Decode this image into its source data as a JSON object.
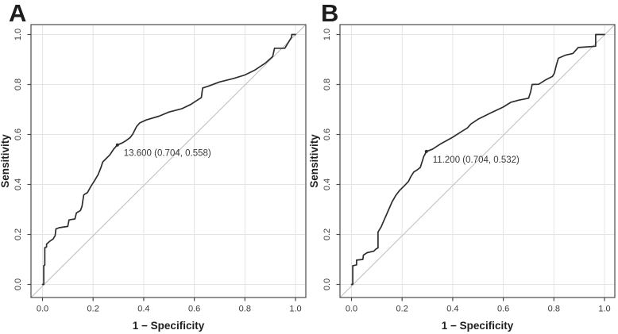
{
  "page": {
    "background": "#ffffff"
  },
  "colors": {
    "curve": "#2e2e2e",
    "grid": "#e4e4e4",
    "diagonal": "#bdbdbd",
    "frame": "#4a4a4a",
    "tick_text": "#3a3a3a",
    "annotation_text": "#3a3a3a",
    "panel_letter": "#1d1d1d"
  },
  "chart_data": [
    {
      "type": "line",
      "panel_label": "A",
      "xlabel": "1 − Specificity",
      "ylabel": "Sensitivity",
      "xlim": [
        0,
        1
      ],
      "ylim": [
        0,
        1
      ],
      "grid": true,
      "legend": false,
      "reference_line": "diagonal y=x",
      "xticks": [
        "0.0",
        "0.2",
        "0.4",
        "0.6",
        "0.8",
        "1.0"
      ],
      "yticks": [
        "0.0",
        "0.2",
        "0.4",
        "0.6",
        "0.8",
        "1.0"
      ],
      "cutoff_annotation": {
        "label": "13.600 (0.704, 0.558)",
        "cutoff": "13.600",
        "specificity": 0.704,
        "sensitivity": 0.558,
        "x": 0.296,
        "y": 0.558
      },
      "roc_points": [
        [
          0,
          0
        ],
        [
          0.005,
          0
        ],
        [
          0.005,
          0.075
        ],
        [
          0.009,
          0.078
        ],
        [
          0.009,
          0.147
        ],
        [
          0.016,
          0.15
        ],
        [
          0.016,
          0.161
        ],
        [
          0.028,
          0.172
        ],
        [
          0.042,
          0.182
        ],
        [
          0.05,
          0.195
        ],
        [
          0.053,
          0.222
        ],
        [
          0.066,
          0.227
        ],
        [
          0.1,
          0.232
        ],
        [
          0.105,
          0.258
        ],
        [
          0.128,
          0.262
        ],
        [
          0.134,
          0.286
        ],
        [
          0.15,
          0.296
        ],
        [
          0.156,
          0.312
        ],
        [
          0.163,
          0.358
        ],
        [
          0.178,
          0.368
        ],
        [
          0.19,
          0.39
        ],
        [
          0.205,
          0.414
        ],
        [
          0.22,
          0.44
        ],
        [
          0.231,
          0.468
        ],
        [
          0.238,
          0.49
        ],
        [
          0.25,
          0.502
        ],
        [
          0.266,
          0.518
        ],
        [
          0.281,
          0.541
        ],
        [
          0.296,
          0.558
        ],
        [
          0.315,
          0.566
        ],
        [
          0.331,
          0.576
        ],
        [
          0.347,
          0.588
        ],
        [
          0.357,
          0.602
        ],
        [
          0.372,
          0.632
        ],
        [
          0.384,
          0.646
        ],
        [
          0.41,
          0.658
        ],
        [
          0.46,
          0.673
        ],
        [
          0.5,
          0.69
        ],
        [
          0.55,
          0.703
        ],
        [
          0.586,
          0.72
        ],
        [
          0.616,
          0.74
        ],
        [
          0.628,
          0.748
        ],
        [
          0.633,
          0.786
        ],
        [
          0.655,
          0.793
        ],
        [
          0.7,
          0.81
        ],
        [
          0.755,
          0.824
        ],
        [
          0.8,
          0.838
        ],
        [
          0.84,
          0.858
        ],
        [
          0.88,
          0.885
        ],
        [
          0.91,
          0.912
        ],
        [
          0.917,
          0.945
        ],
        [
          0.958,
          0.945
        ],
        [
          0.985,
          0.99
        ],
        [
          0.985,
          1
        ],
        [
          1,
          1
        ]
      ]
    },
    {
      "type": "line",
      "panel_label": "B",
      "xlabel": "1 − Specificity",
      "ylabel": "Sensitivity",
      "xlim": [
        0,
        1
      ],
      "ylim": [
        0,
        1
      ],
      "grid": true,
      "legend": false,
      "reference_line": "diagonal y=x",
      "xticks": [
        "0.0",
        "0.2",
        "0.4",
        "0.6",
        "0.8",
        "1.0"
      ],
      "yticks": [
        "0.0",
        "0.2",
        "0.4",
        "0.6",
        "0.8",
        "1.0"
      ],
      "cutoff_annotation": {
        "label": "11.200 (0.704, 0.532)",
        "cutoff": "11.200",
        "specificity": 0.704,
        "sensitivity": 0.532,
        "x": 0.296,
        "y": 0.532
      },
      "roc_points": [
        [
          0,
          0
        ],
        [
          0.005,
          0
        ],
        [
          0.005,
          0.075
        ],
        [
          0.02,
          0.078
        ],
        [
          0.02,
          0.097
        ],
        [
          0.045,
          0.1
        ],
        [
          0.047,
          0.117
        ],
        [
          0.062,
          0.127
        ],
        [
          0.088,
          0.133
        ],
        [
          0.097,
          0.142
        ],
        [
          0.105,
          0.146
        ],
        [
          0.105,
          0.21
        ],
        [
          0.117,
          0.23
        ],
        [
          0.13,
          0.26
        ],
        [
          0.145,
          0.295
        ],
        [
          0.16,
          0.33
        ],
        [
          0.175,
          0.356
        ],
        [
          0.19,
          0.376
        ],
        [
          0.21,
          0.396
        ],
        [
          0.225,
          0.412
        ],
        [
          0.235,
          0.432
        ],
        [
          0.246,
          0.45
        ],
        [
          0.258,
          0.457
        ],
        [
          0.272,
          0.468
        ],
        [
          0.285,
          0.51
        ],
        [
          0.296,
          0.532
        ],
        [
          0.32,
          0.541
        ],
        [
          0.35,
          0.561
        ],
        [
          0.4,
          0.589
        ],
        [
          0.44,
          0.615
        ],
        [
          0.458,
          0.626
        ],
        [
          0.472,
          0.642
        ],
        [
          0.5,
          0.661
        ],
        [
          0.55,
          0.686
        ],
        [
          0.6,
          0.71
        ],
        [
          0.63,
          0.729
        ],
        [
          0.66,
          0.737
        ],
        [
          0.7,
          0.745
        ],
        [
          0.708,
          0.77
        ],
        [
          0.714,
          0.8
        ],
        [
          0.74,
          0.801
        ],
        [
          0.77,
          0.82
        ],
        [
          0.794,
          0.832
        ],
        [
          0.802,
          0.845
        ],
        [
          0.81,
          0.879
        ],
        [
          0.818,
          0.905
        ],
        [
          0.845,
          0.917
        ],
        [
          0.875,
          0.924
        ],
        [
          0.896,
          0.948
        ],
        [
          0.965,
          0.953
        ],
        [
          0.965,
          1
        ],
        [
          1,
          1
        ]
      ]
    }
  ]
}
